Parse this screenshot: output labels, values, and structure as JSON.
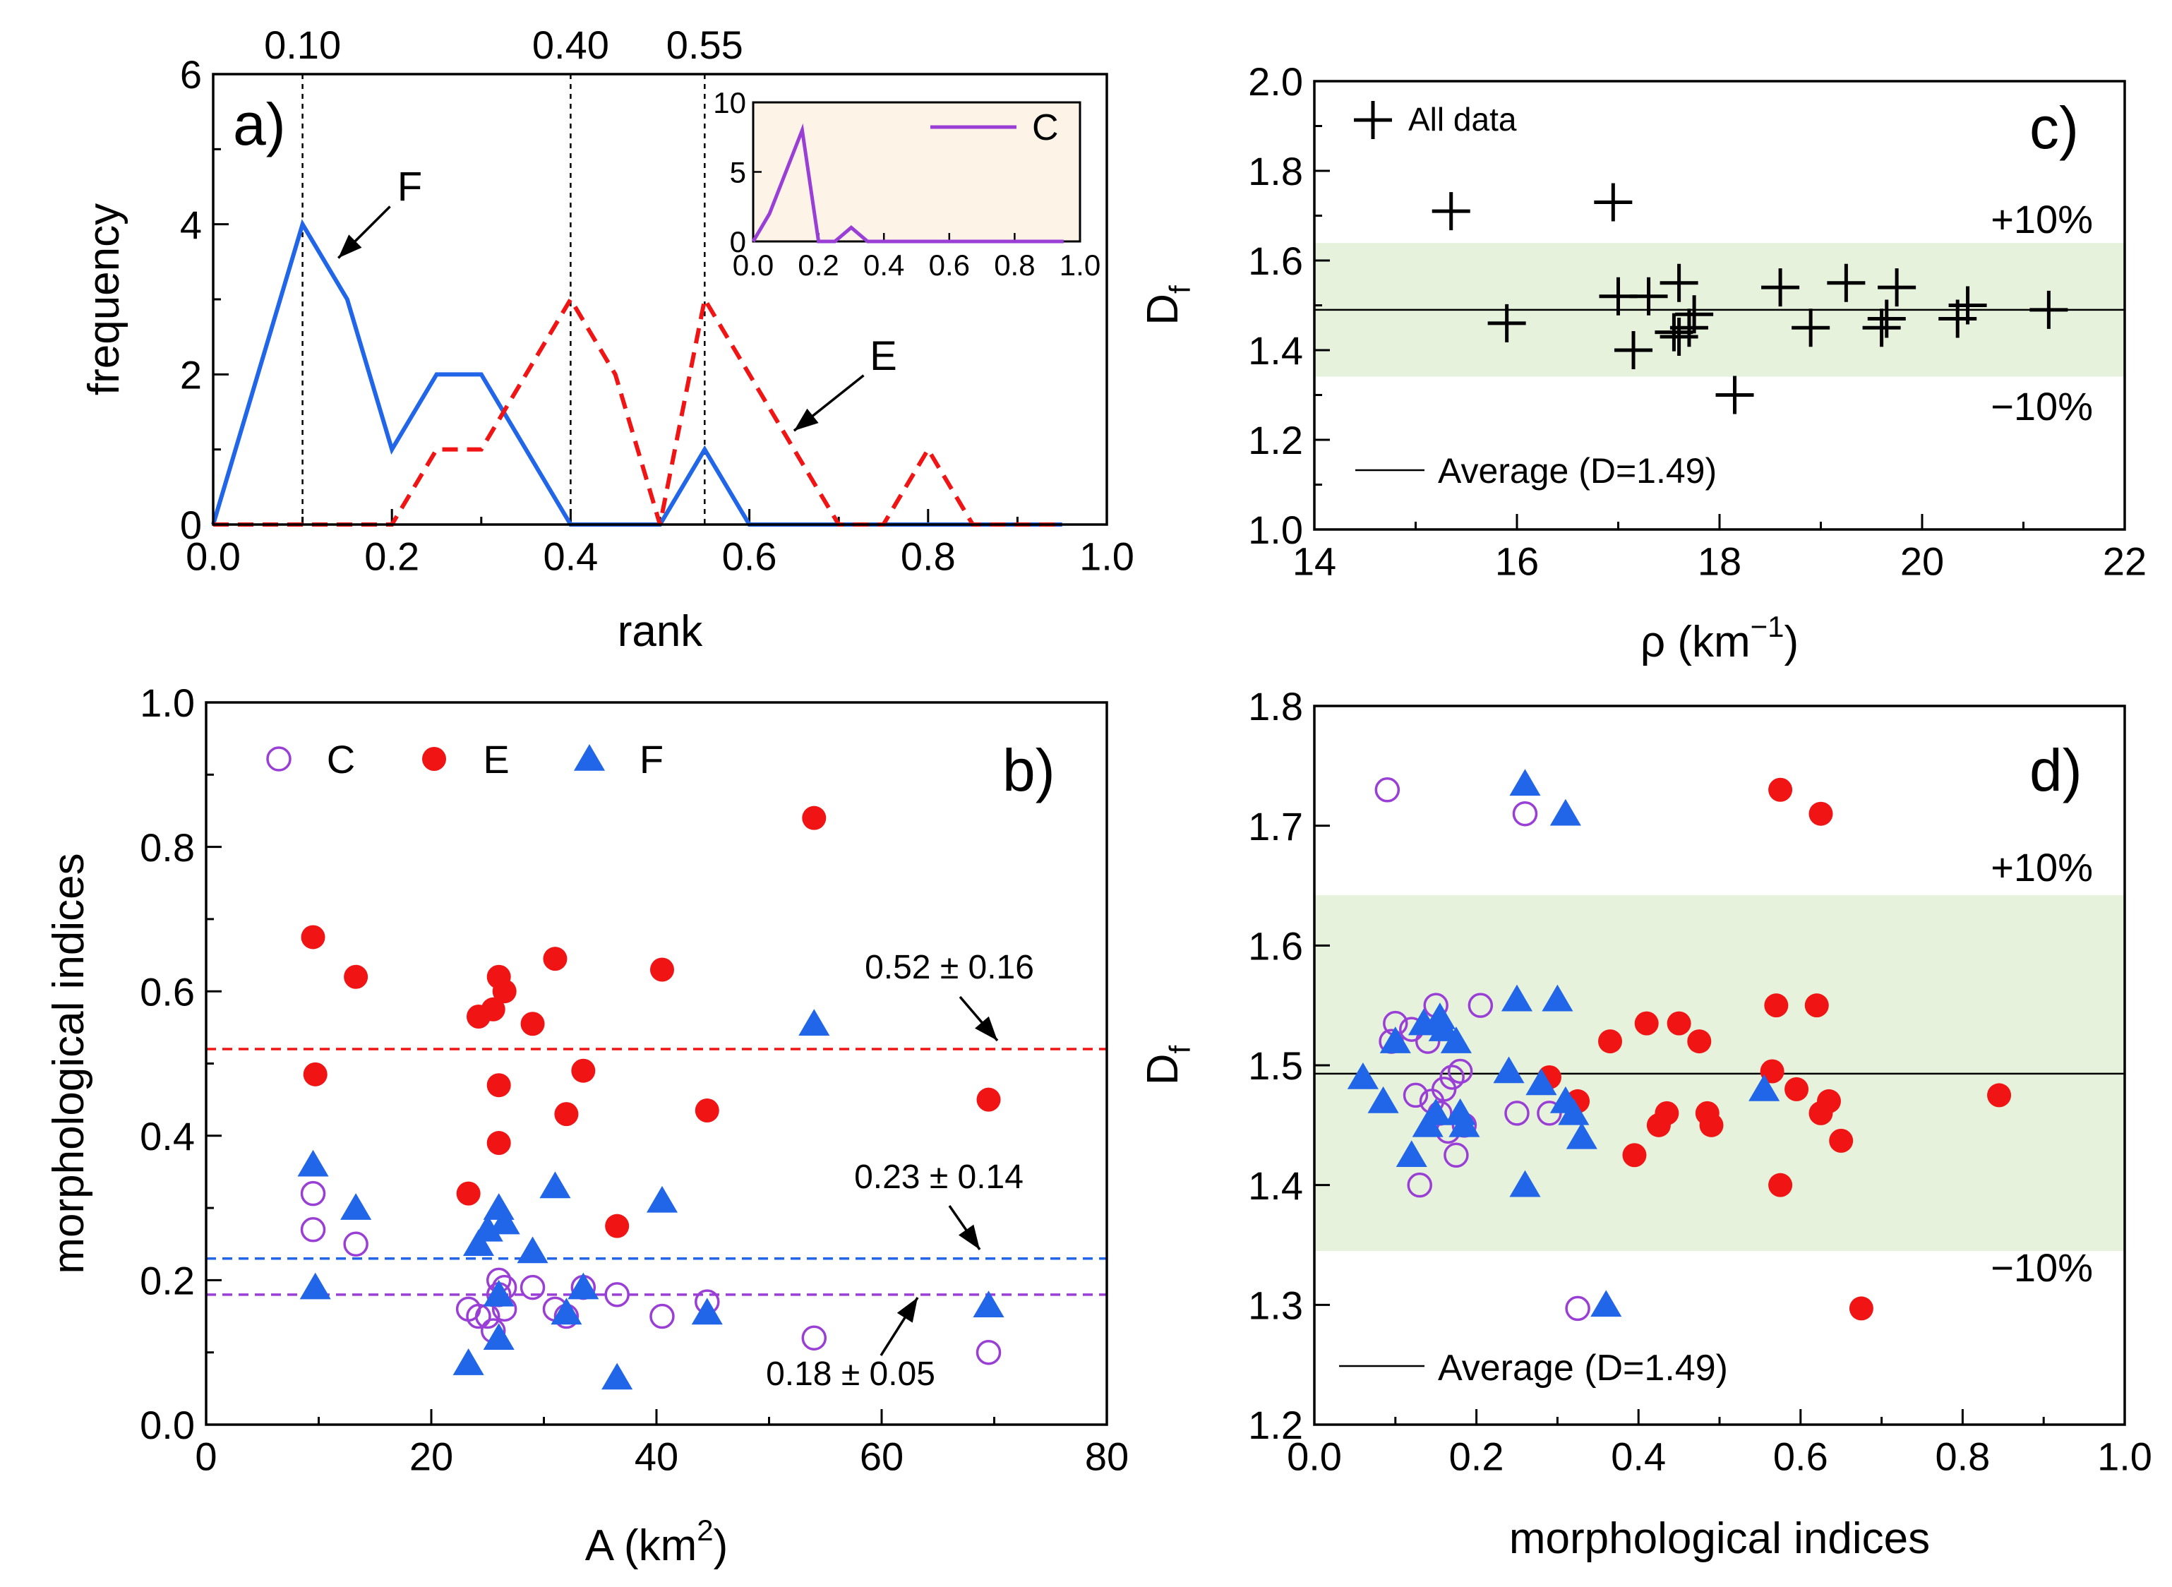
{
  "colors": {
    "F": "#2166e8",
    "E": "#f01414",
    "C": "#9a3fd6",
    "band": "#e6f2dc",
    "black": "#000000"
  },
  "chart_data": [
    {
      "id": "a",
      "panel_label": "a)",
      "type": "line",
      "xlabel": "rank",
      "ylabel": "frequency",
      "xlim": [
        0.0,
        1.0
      ],
      "ylim": [
        0,
        6
      ],
      "xticks": [
        "0.0",
        "0.2",
        "0.4",
        "0.6",
        "0.8",
        "1.0"
      ],
      "yticks": [
        "0",
        "2",
        "4",
        "6"
      ],
      "ref_lines": [
        {
          "x": 0.1,
          "label": "0.10"
        },
        {
          "x": 0.4,
          "label": "0.40"
        },
        {
          "x": 0.55,
          "label": "0.55"
        }
      ],
      "series": [
        {
          "name": "F",
          "color_key": "F",
          "dashed": false,
          "x": [
            0.0,
            0.1,
            0.15,
            0.2,
            0.25,
            0.3,
            0.4,
            0.5,
            0.55,
            0.6,
            0.95
          ],
          "y": [
            0,
            4,
            3,
            1,
            2,
            2,
            0,
            0,
            1,
            0,
            0
          ]
        },
        {
          "name": "E",
          "color_key": "E",
          "dashed": true,
          "x": [
            0.0,
            0.2,
            0.25,
            0.3,
            0.4,
            0.45,
            0.5,
            0.55,
            0.6,
            0.65,
            0.7,
            0.75,
            0.8,
            0.85,
            0.95
          ],
          "y": [
            0,
            0,
            1,
            1,
            3,
            2,
            0,
            3,
            2,
            1,
            0,
            0,
            1,
            0,
            0
          ]
        }
      ],
      "annotations": [
        {
          "text": "F",
          "x": 0.22,
          "y": 4.5,
          "arrow_to": [
            0.14,
            3.55
          ]
        },
        {
          "text": "E",
          "x": 0.75,
          "y": 2.25,
          "arrow_to": [
            0.65,
            1.25
          ]
        }
      ],
      "inset": {
        "xlim": [
          0.0,
          1.0
        ],
        "ylim": [
          0,
          10
        ],
        "xticks": [
          "0.0",
          "0.2",
          "0.4",
          "0.6",
          "0.8",
          "1.0"
        ],
        "yticks": [
          "0",
          "5",
          "10"
        ],
        "legend": "C",
        "series": {
          "name": "C",
          "color_key": "C",
          "x": [
            0.0,
            0.05,
            0.15,
            0.2,
            0.25,
            0.3,
            0.35,
            0.95
          ],
          "y": [
            0,
            2,
            8,
            0,
            0,
            1,
            0,
            0
          ]
        }
      }
    },
    {
      "id": "b",
      "panel_label": "b)",
      "type": "scatter",
      "xlabel": "A (km",
      "xlabel_sup": "2",
      "xlabel_end": ")",
      "ylabel": "morphological indices",
      "xlim": [
        0,
        80
      ],
      "ylim": [
        0.0,
        1.0
      ],
      "xticks": [
        "0",
        "20",
        "40",
        "60",
        "80"
      ],
      "yticks": [
        "0.0",
        "0.2",
        "0.4",
        "0.6",
        "0.8",
        "1.0"
      ],
      "legend": [
        "C",
        "E",
        "F"
      ],
      "hlines": [
        {
          "y": 0.52,
          "color_key": "E",
          "label": "0.52 ± 0.16"
        },
        {
          "y": 0.23,
          "color_key": "F",
          "label": "0.23 ± 0.14"
        },
        {
          "y": 0.18,
          "color_key": "C",
          "label": "0.18 ± 0.05"
        }
      ],
      "series": [
        {
          "name": "C",
          "marker": "open-circle",
          "color_key": "C",
          "points": [
            [
              9.5,
              0.32
            ],
            [
              9.5,
              0.27
            ],
            [
              13.3,
              0.25
            ],
            [
              23.3,
              0.16
            ],
            [
              24.2,
              0.15
            ],
            [
              25.0,
              0.15
            ],
            [
              25.5,
              0.13
            ],
            [
              26.0,
              0.2
            ],
            [
              26.0,
              0.18
            ],
            [
              26.5,
              0.19
            ],
            [
              26.5,
              0.16
            ],
            [
              29.0,
              0.19
            ],
            [
              31.0,
              0.16
            ],
            [
              32.0,
              0.15
            ],
            [
              33.5,
              0.19
            ],
            [
              36.5,
              0.18
            ],
            [
              40.5,
              0.15
            ],
            [
              44.5,
              0.17
            ],
            [
              54.0,
              0.12
            ],
            [
              69.5,
              0.1
            ]
          ]
        },
        {
          "name": "E",
          "marker": "filled-circle",
          "color_key": "E",
          "points": [
            [
              9.5,
              0.675
            ],
            [
              9.7,
              0.485
            ],
            [
              13.3,
              0.62
            ],
            [
              23.3,
              0.32
            ],
            [
              24.2,
              0.565
            ],
            [
              25.5,
              0.575
            ],
            [
              26.0,
              0.62
            ],
            [
              26.5,
              0.6
            ],
            [
              26.0,
              0.47
            ],
            [
              26.0,
              0.39
            ],
            [
              29.0,
              0.555
            ],
            [
              31.0,
              0.645
            ],
            [
              32.0,
              0.43
            ],
            [
              33.5,
              0.49
            ],
            [
              36.5,
              0.275
            ],
            [
              40.5,
              0.63
            ],
            [
              44.5,
              0.435
            ],
            [
              54.0,
              0.84
            ],
            [
              69.5,
              0.45
            ]
          ]
        },
        {
          "name": "F",
          "marker": "filled-triangle",
          "color_key": "F",
          "points": [
            [
              9.5,
              0.36
            ],
            [
              9.7,
              0.19
            ],
            [
              13.3,
              0.3
            ],
            [
              23.3,
              0.085
            ],
            [
              24.2,
              0.25
            ],
            [
              25.0,
              0.27
            ],
            [
              26.0,
              0.3
            ],
            [
              26.5,
              0.28
            ],
            [
              26.0,
              0.18
            ],
            [
              26.0,
              0.12
            ],
            [
              29.0,
              0.24
            ],
            [
              31.0,
              0.33
            ],
            [
              32.0,
              0.155
            ],
            [
              33.5,
              0.19
            ],
            [
              36.5,
              0.065
            ],
            [
              40.5,
              0.31
            ],
            [
              44.5,
              0.155
            ],
            [
              54.0,
              0.555
            ],
            [
              69.5,
              0.165
            ]
          ]
        }
      ]
    },
    {
      "id": "c",
      "panel_label": "c)",
      "type": "scatter",
      "xlabel": "ρ (km",
      "xlabel_sup": "−1",
      "xlabel_end": ")",
      "ylabel": "D",
      "ylabel_sub": "f",
      "xlim": [
        14,
        22
      ],
      "ylim": [
        1.0,
        2.0
      ],
      "xticks": [
        "14",
        "16",
        "18",
        "20",
        "22"
      ],
      "yticks": [
        "1.0",
        "1.2",
        "1.4",
        "1.6",
        "1.8",
        "2.0"
      ],
      "band": {
        "low": 1.341,
        "high": 1.639,
        "label_high": "+10%",
        "label_low": "−10%"
      },
      "average": {
        "y": 1.49,
        "label": "Average (D=1.49)"
      },
      "legend": "All data",
      "series": [
        {
          "name": "All data",
          "marker": "plus",
          "points": [
            [
              15.35,
              1.71
            ],
            [
              15.9,
              1.46
            ],
            [
              16.95,
              1.73
            ],
            [
              17.0,
              1.52
            ],
            [
              17.15,
              1.4
            ],
            [
              17.3,
              1.52
            ],
            [
              17.6,
              1.55
            ],
            [
              17.55,
              1.44
            ],
            [
              17.6,
              1.43
            ],
            [
              17.7,
              1.45
            ],
            [
              17.75,
              1.48
            ],
            [
              18.15,
              1.3
            ],
            [
              18.6,
              1.54
            ],
            [
              18.9,
              1.45
            ],
            [
              19.25,
              1.55
            ],
            [
              19.6,
              1.45
            ],
            [
              19.65,
              1.47
            ],
            [
              19.75,
              1.54
            ],
            [
              20.35,
              1.47
            ],
            [
              20.45,
              1.5
            ],
            [
              21.25,
              1.49
            ]
          ]
        }
      ]
    },
    {
      "id": "d",
      "panel_label": "d)",
      "type": "scatter",
      "xlabel": "morphological indices",
      "ylabel": "D",
      "ylabel_sub": "f",
      "xlim": [
        0.0,
        1.0
      ],
      "ylim": [
        1.2,
        1.8
      ],
      "xticks": [
        "0.0",
        "0.2",
        "0.4",
        "0.6",
        "0.8",
        "1.0"
      ],
      "yticks": [
        "1.2",
        "1.3",
        "1.4",
        "1.5",
        "1.6",
        "1.7",
        "1.8"
      ],
      "band": {
        "low": 1.345,
        "high": 1.642,
        "label_high": "+10%",
        "label_low": "−10%"
      },
      "average": {
        "y": 1.493,
        "label": "Average (D=1.49)"
      },
      "series": [
        {
          "name": "C",
          "marker": "open-circle",
          "color_key": "C",
          "points": [
            [
              0.09,
              1.73
            ],
            [
              0.095,
              1.52
            ],
            [
              0.1,
              1.535
            ],
            [
              0.12,
              1.53
            ],
            [
              0.125,
              1.475
            ],
            [
              0.13,
              1.4
            ],
            [
              0.14,
              1.52
            ],
            [
              0.145,
              1.47
            ],
            [
              0.15,
              1.55
            ],
            [
              0.155,
              1.46
            ],
            [
              0.16,
              1.48
            ],
            [
              0.165,
              1.445
            ],
            [
              0.17,
              1.49
            ],
            [
              0.175,
              1.425
            ],
            [
              0.18,
              1.495
            ],
            [
              0.185,
              1.45
            ],
            [
              0.205,
              1.55
            ],
            [
              0.26,
              1.71
            ],
            [
              0.25,
              1.46
            ],
            [
              0.29,
              1.46
            ],
            [
              0.325,
              1.297
            ]
          ]
        },
        {
          "name": "E",
          "marker": "filled-circle",
          "color_key": "E",
          "points": [
            [
              0.29,
              1.49
            ],
            [
              0.325,
              1.47
            ],
            [
              0.365,
              1.52
            ],
            [
              0.395,
              1.425
            ],
            [
              0.41,
              1.535
            ],
            [
              0.425,
              1.45
            ],
            [
              0.435,
              1.46
            ],
            [
              0.45,
              1.535
            ],
            [
              0.475,
              1.52
            ],
            [
              0.485,
              1.46
            ],
            [
              0.49,
              1.45
            ],
            [
              0.565,
              1.495
            ],
            [
              0.57,
              1.55
            ],
            [
              0.575,
              1.73
            ],
            [
              0.575,
              1.4
            ],
            [
              0.595,
              1.48
            ],
            [
              0.62,
              1.55
            ],
            [
              0.625,
              1.71
            ],
            [
              0.625,
              1.46
            ],
            [
              0.635,
              1.47
            ],
            [
              0.65,
              1.437
            ],
            [
              0.675,
              1.297
            ],
            [
              0.845,
              1.475
            ]
          ]
        },
        {
          "name": "F",
          "marker": "filled-triangle",
          "color_key": "F",
          "points": [
            [
              0.06,
              1.49
            ],
            [
              0.085,
              1.47
            ],
            [
              0.1,
              1.52
            ],
            [
              0.12,
              1.425
            ],
            [
              0.135,
              1.535
            ],
            [
              0.14,
              1.45
            ],
            [
              0.15,
              1.46
            ],
            [
              0.155,
              1.54
            ],
            [
              0.16,
              1.53
            ],
            [
              0.175,
              1.52
            ],
            [
              0.18,
              1.46
            ],
            [
              0.185,
              1.45
            ],
            [
              0.24,
              1.495
            ],
            [
              0.25,
              1.555
            ],
            [
              0.26,
              1.4
            ],
            [
              0.26,
              1.735
            ],
            [
              0.28,
              1.485
            ],
            [
              0.3,
              1.555
            ],
            [
              0.31,
              1.71
            ],
            [
              0.31,
              1.47
            ],
            [
              0.32,
              1.46
            ],
            [
              0.33,
              1.44
            ],
            [
              0.36,
              1.3
            ],
            [
              0.555,
              1.48
            ]
          ]
        }
      ]
    }
  ]
}
